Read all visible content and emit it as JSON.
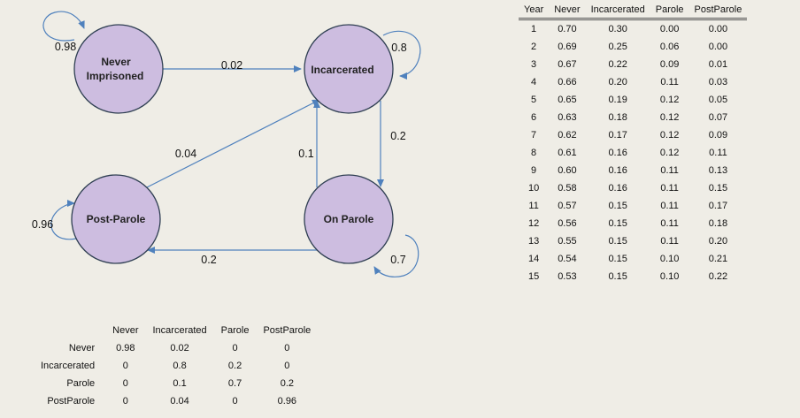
{
  "diagram": {
    "states": {
      "never": [
        "Never",
        "Imprisoned"
      ],
      "incarcerated": "Incarcerated",
      "postparole": "Post-Parole",
      "onparole": "On Parole"
    },
    "edges": {
      "never_self": "0.98",
      "never_to_incarcerated": "0.02",
      "incarcerated_self": "0.8",
      "incarcerated_to_parole": "0.2",
      "parole_to_incarcerated": "0.1",
      "postparole_to_incarcerated": "0.04",
      "parole_to_postparole": "0.2",
      "parole_self": "0.7",
      "postparole_self": "0.96"
    },
    "colors": {
      "node_fill": "#cdbde0",
      "node_stroke": "#2f3f52",
      "arrow": "#4f81bd"
    }
  },
  "year_table": {
    "headers": [
      "Year",
      "Never",
      "Incarcerated",
      "Parole",
      "PostParole"
    ],
    "rows": [
      [
        "1",
        "0.70",
        "0.30",
        "0.00",
        "0.00"
      ],
      [
        "2",
        "0.69",
        "0.25",
        "0.06",
        "0.00"
      ],
      [
        "3",
        "0.67",
        "0.22",
        "0.09",
        "0.01"
      ],
      [
        "4",
        "0.66",
        "0.20",
        "0.11",
        "0.03"
      ],
      [
        "5",
        "0.65",
        "0.19",
        "0.12",
        "0.05"
      ],
      [
        "6",
        "0.63",
        "0.18",
        "0.12",
        "0.07"
      ],
      [
        "7",
        "0.62",
        "0.17",
        "0.12",
        "0.09"
      ],
      [
        "8",
        "0.61",
        "0.16",
        "0.12",
        "0.11"
      ],
      [
        "9",
        "0.60",
        "0.16",
        "0.11",
        "0.13"
      ],
      [
        "10",
        "0.58",
        "0.16",
        "0.11",
        "0.15"
      ],
      [
        "11",
        "0.57",
        "0.15",
        "0.11",
        "0.17"
      ],
      [
        "12",
        "0.56",
        "0.15",
        "0.11",
        "0.18"
      ],
      [
        "13",
        "0.55",
        "0.15",
        "0.11",
        "0.20"
      ],
      [
        "14",
        "0.54",
        "0.15",
        "0.10",
        "0.21"
      ],
      [
        "15",
        "0.53",
        "0.15",
        "0.10",
        "0.22"
      ]
    ]
  },
  "matrix_table": {
    "headers": [
      "",
      "Never",
      "Incarcerated",
      "Parole",
      "PostParole"
    ],
    "rows": [
      [
        "Never",
        "0.98",
        "0.02",
        "0",
        "0"
      ],
      [
        "Incarcerated",
        "0",
        "0.8",
        "0.2",
        "0"
      ],
      [
        "Parole",
        "0",
        "0.1",
        "0.7",
        "0.2"
      ],
      [
        "PostParole",
        "0",
        "0.04",
        "0",
        "0.96"
      ]
    ]
  }
}
